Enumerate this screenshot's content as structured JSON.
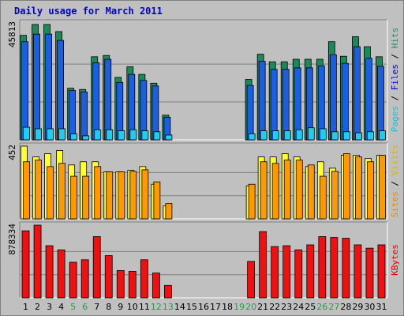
{
  "title": "Daily usage for March 2011",
  "colors": {
    "hits": "#1a8a5a",
    "files": "#1a5fe0",
    "pages": "#22ccee",
    "visits": "#ffff33",
    "sites": "#ff9900",
    "kbytes": "#ee1111",
    "weekend": "#2a9a4a",
    "weekday": "#000000",
    "legend_files": "#0000cc",
    "legend_hits": "#2a8a6a",
    "legend_pages": "#22bbcc",
    "legend_visits": "#d4b800",
    "legend_sites": "#ee8800",
    "legend_kbytes": "#dd0000",
    "legend_slash": "#000000"
  },
  "chart_data": [
    {
      "type": "bar",
      "panel": "hits-files-pages",
      "title": "",
      "categories": [
        "1",
        "2",
        "3",
        "4",
        "5",
        "6",
        "7",
        "8",
        "9",
        "10",
        "11",
        "12",
        "13",
        "14",
        "15",
        "16",
        "17",
        "18",
        "19",
        "20",
        "21",
        "22",
        "23",
        "24",
        "25",
        "26",
        "27",
        "28",
        "29",
        "30",
        "31"
      ],
      "weekend_days": [
        "5",
        "6",
        "12",
        "13",
        "19",
        "20",
        "26",
        "27"
      ],
      "ymax_label": "45813",
      "ylim": [
        0,
        45813
      ],
      "series": [
        {
          "name": "Hits",
          "values": [
            41500,
            45813,
            45813,
            43000,
            20500,
            20000,
            33000,
            33500,
            24800,
            29000,
            26000,
            22500,
            9800,
            0,
            0,
            0,
            0,
            0,
            0,
            24000,
            34000,
            31000,
            31000,
            32000,
            32000,
            32000,
            39000,
            33200,
            41000,
            37000,
            33000
          ]
        },
        {
          "name": "Files",
          "values": [
            39000,
            42000,
            42000,
            39500,
            19600,
            19000,
            30600,
            32000,
            22800,
            26000,
            23600,
            21400,
            9000,
            0,
            0,
            0,
            0,
            0,
            0,
            21600,
            31200,
            28000,
            28000,
            28600,
            28600,
            29400,
            33800,
            30400,
            37000,
            32400,
            29200
          ]
        },
        {
          "name": "Pages",
          "values": [
            5000,
            4400,
            4400,
            4400,
            2400,
            1600,
            4000,
            4000,
            3600,
            4000,
            3600,
            3200,
            1900,
            0,
            0,
            0,
            0,
            0,
            0,
            2400,
            3600,
            3600,
            3600,
            4000,
            4800,
            4400,
            3200,
            3200,
            2800,
            3200,
            3600
          ]
        }
      ],
      "legend": [
        "Pages",
        "Files",
        "Hits"
      ]
    },
    {
      "type": "bar",
      "panel": "sites-visits",
      "title": "",
      "categories": [
        "1",
        "2",
        "3",
        "4",
        "5",
        "6",
        "7",
        "8",
        "9",
        "10",
        "11",
        "12",
        "13",
        "14",
        "15",
        "16",
        "17",
        "18",
        "19",
        "20",
        "21",
        "22",
        "23",
        "24",
        "25",
        "26",
        "27",
        "28",
        "29",
        "30",
        "31"
      ],
      "ymax_label": "452",
      "ylim": [
        0,
        452
      ],
      "series": [
        {
          "name": "Visits",
          "values": [
            452,
            385,
            405,
            425,
            335,
            355,
            355,
            292,
            292,
            302,
            325,
            215,
            80,
            0,
            0,
            0,
            0,
            0,
            0,
            205,
            385,
            385,
            405,
            385,
            325,
            355,
            315,
            395,
            395,
            375,
            395
          ]
        },
        {
          "name": "Sites",
          "values": [
            355,
            365,
            325,
            345,
            265,
            265,
            325,
            292,
            292,
            295,
            305,
            230,
            95,
            0,
            0,
            0,
            0,
            0,
            0,
            215,
            355,
            345,
            365,
            365,
            335,
            265,
            295,
            405,
            385,
            355,
            395
          ]
        }
      ],
      "legend": [
        "Sites",
        "Visits"
      ]
    },
    {
      "type": "bar",
      "panel": "kbytes",
      "title": "",
      "categories": [
        "1",
        "2",
        "3",
        "4",
        "5",
        "6",
        "7",
        "8",
        "9",
        "10",
        "11",
        "12",
        "13",
        "14",
        "15",
        "16",
        "17",
        "18",
        "19",
        "20",
        "21",
        "22",
        "23",
        "24",
        "25",
        "26",
        "27",
        "28",
        "29",
        "30",
        "31"
      ],
      "ymax_label": "878334",
      "ylim": [
        0,
        878334
      ],
      "series": [
        {
          "name": "KBytes",
          "values": [
            810000,
            878334,
            630000,
            580000,
            430000,
            460000,
            740000,
            510000,
            330000,
            320000,
            460000,
            300000,
            150000,
            0,
            0,
            0,
            0,
            0,
            0,
            440000,
            800000,
            620000,
            630000,
            580000,
            640000,
            740000,
            730000,
            720000,
            640000,
            600000,
            640000
          ]
        }
      ],
      "legend": [
        "KBytes"
      ]
    }
  ]
}
